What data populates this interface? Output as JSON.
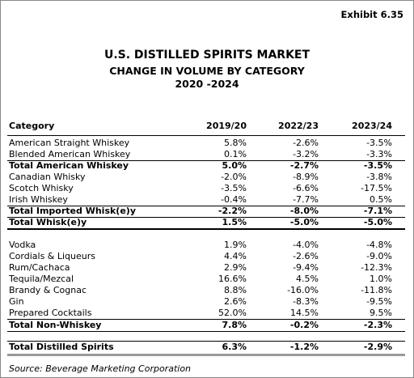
{
  "header": {
    "exhibit": "Exhibit 6.35",
    "title": "U.S. DISTILLED SPIRITS MARKET",
    "subtitle": "CHANGE IN VOLUME BY CATEGORY",
    "period": "2020 -2024"
  },
  "table": {
    "columns": [
      "Category",
      "2019/20",
      "2022/23",
      "2023/24"
    ],
    "rows": [
      [
        "American Straight Whiskey",
        "5.8%",
        "-2.6%",
        "-3.5%"
      ],
      [
        "Blended American Whiskey",
        "0.1%",
        "-3.2%",
        "-3.3%"
      ],
      [
        "Total American Whiskey",
        "5.0%",
        "-2.7%",
        "-3.5%"
      ],
      [
        "Canadian Whisky",
        "-2.0%",
        "-8.9%",
        "-3.8%"
      ],
      [
        "Scotch Whisky",
        "-3.5%",
        "-6.6%",
        "-17.5%"
      ],
      [
        "Irish Whiskey",
        "-0.4%",
        "-7.7%",
        "0.5%"
      ],
      [
        "Total Imported Whisk(e)y",
        "-2.2%",
        "-8.0%",
        "-7.1%"
      ],
      [
        "Total Whisk(e)y",
        "1.5%",
        "-5.0%",
        "-5.0%"
      ],
      [
        "Vodka",
        "1.9%",
        "-4.0%",
        "-4.8%"
      ],
      [
        "Cordials & Liqueurs",
        "4.4%",
        "-2.6%",
        "-9.0%"
      ],
      [
        "Rum/Cachaca",
        "2.9%",
        "-9.4%",
        "-12.3%"
      ],
      [
        "Tequila/Mezcal",
        "16.6%",
        "4.5%",
        "1.0%"
      ],
      [
        "Brandy & Cognac",
        "8.8%",
        "-16.0%",
        "-11.8%"
      ],
      [
        "Gin",
        "2.6%",
        "-8.3%",
        "-9.5%"
      ],
      [
        "Prepared Cocktails",
        "52.0%",
        "14.5%",
        "9.5%"
      ],
      [
        "Total Non-Whiskey",
        "7.8%",
        "-0.2%",
        "-2.3%"
      ],
      [
        "Total Distilled Spirits",
        "6.3%",
        "-1.2%",
        "-2.9%"
      ]
    ]
  },
  "source": "Source:  Beverage Marketing Corporation"
}
